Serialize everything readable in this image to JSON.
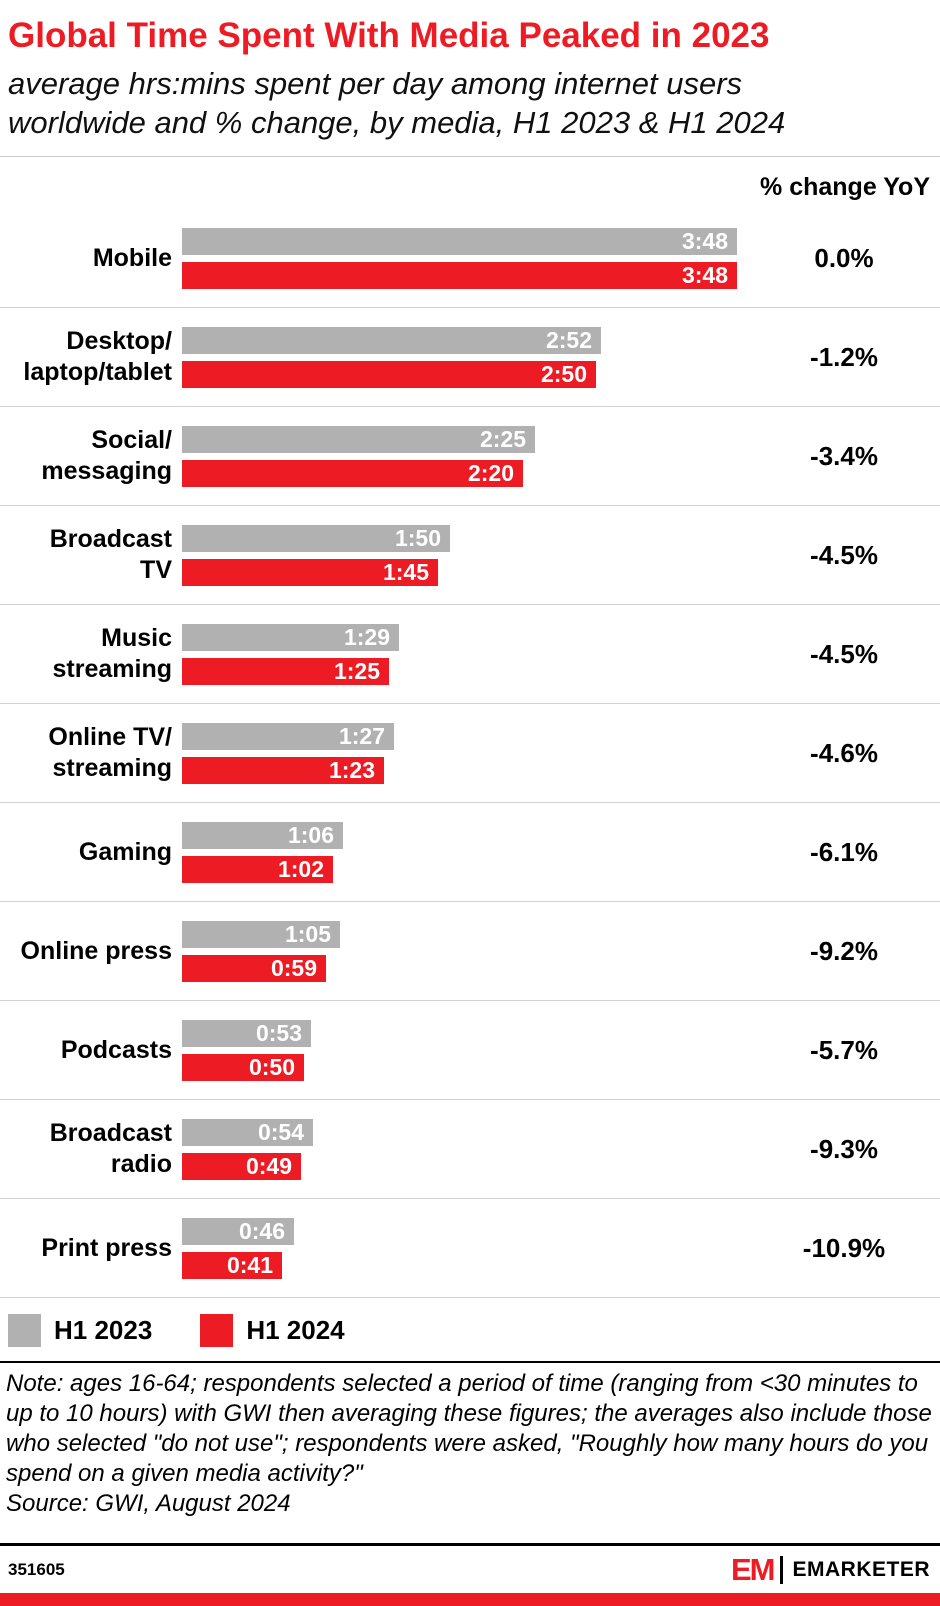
{
  "header": {
    "title": "Global Time Spent With Media Peaked in 2023",
    "subtitle": "average hrs:mins spent per day among internet users\nworldwide and % change, by media, H1 2023 & H1 2024"
  },
  "chart_data": {
    "type": "bar",
    "orientation": "horizontal",
    "value_format": "hrs:mins per day",
    "column_header": "% change YoY",
    "x_axis_max_minutes": 228,
    "legend_position": "bottom",
    "categories": [
      "Mobile",
      "Desktop/\nlaptop/tablet",
      "Social/\nmessaging",
      "Broadcast\nTV",
      "Music\nstreaming",
      "Online TV/\nstreaming",
      "Gaming",
      "Online press",
      "Podcasts",
      "Broadcast\nradio",
      "Print press"
    ],
    "series": [
      {
        "name": "H1 2023",
        "color": "#b1b1b1",
        "values": [
          "3:48",
          "2:52",
          "2:25",
          "1:50",
          "1:29",
          "1:27",
          "1:06",
          "1:05",
          "0:53",
          "0:54",
          "0:46"
        ],
        "minutes": [
          228,
          172,
          145,
          110,
          89,
          87,
          66,
          65,
          53,
          54,
          46
        ]
      },
      {
        "name": "H1 2024",
        "color": "#ed1c24",
        "values": [
          "3:48",
          "2:50",
          "2:20",
          "1:45",
          "1:25",
          "1:23",
          "1:02",
          "0:59",
          "0:50",
          "0:49",
          "0:41"
        ],
        "minutes": [
          228,
          170,
          140,
          105,
          85,
          83,
          62,
          59,
          50,
          49,
          41
        ]
      }
    ],
    "pct_change": [
      "0.0%",
      "-1.2%",
      "-3.4%",
      "-4.5%",
      "-4.5%",
      "-4.6%",
      "-6.1%",
      "-9.2%",
      "-5.7%",
      "-9.3%",
      "-10.9%"
    ]
  },
  "notes": {
    "note": "Note: ages 16-64; respondents selected a period of time (ranging from <30 minutes to\nup to 10 hours) with GWI then averaging these figures; the averages also include those\nwho selected \"do not use\"; respondents were asked, \"Roughly how many hours do you\nspend on a given media activity?\"",
    "source": "Source: GWI, August 2024"
  },
  "footer": {
    "chart_id": "351605",
    "brand_em": "EM",
    "brand_name": "EMARKETER"
  },
  "colors": {
    "accent_red": "#ed1c24",
    "bar_gray": "#b1b1b1",
    "divider_gray": "#d2d2d2"
  }
}
